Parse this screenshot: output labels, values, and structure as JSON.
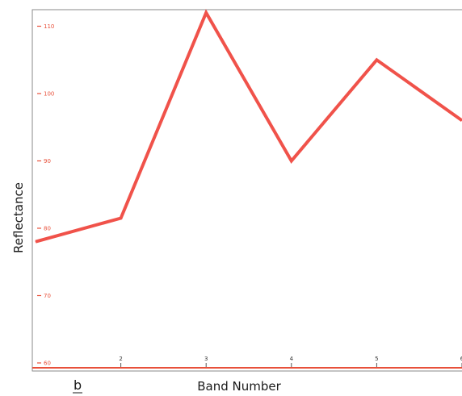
{
  "chart_data": {
    "type": "line",
    "title": "",
    "panel_label": "b",
    "xlabel": "Band Number",
    "ylabel": "Reflectance",
    "x": [
      1,
      2,
      3,
      4,
      5,
      6
    ],
    "series": [
      {
        "values": [
          78,
          81.5,
          112,
          90,
          105,
          96
        ],
        "color": "#f0524a"
      }
    ],
    "xlim": [
      1,
      6
    ],
    "ylim": [
      60,
      114
    ],
    "x_ticks": [
      2,
      3,
      4,
      5,
      6
    ],
    "x_tick_labels": [
      "2",
      "3",
      "4",
      "5",
      "6"
    ],
    "y_ticks": [
      60,
      70,
      80,
      90,
      100,
      110
    ],
    "y_tick_labels": [
      "60",
      "70",
      "80",
      "90",
      "100",
      "110"
    ],
    "grid": false,
    "legend": "none",
    "colors": {
      "line": "#f0524a",
      "y_ticks": "#e8503a",
      "baseline": "#e8503a",
      "frame": "#8a8a8a",
      "text": "#1a1a1a"
    }
  }
}
